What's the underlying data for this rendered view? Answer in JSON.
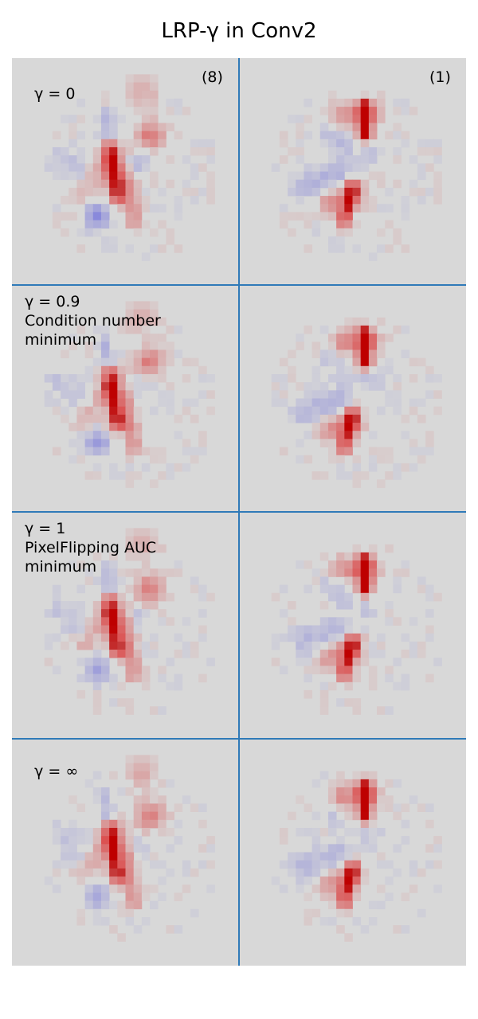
{
  "title": "LRP-γ in Conv2",
  "columns": [
    {
      "label": "(8)"
    },
    {
      "label": "(1)"
    }
  ],
  "rows": [
    {
      "gamma": "γ = 0",
      "note": ""
    },
    {
      "gamma": "γ = 0.9",
      "note": "Condition number\nminimum"
    },
    {
      "gamma": "γ = 1",
      "note": "PixelFlipping AUC\nminimum"
    },
    {
      "gamma": "γ = ∞",
      "note": ""
    }
  ],
  "colors": {
    "background": "#d8d8d8",
    "positive": "#d40000",
    "negative": "#3333cc",
    "grid_lines": "#2f7ab8"
  }
}
